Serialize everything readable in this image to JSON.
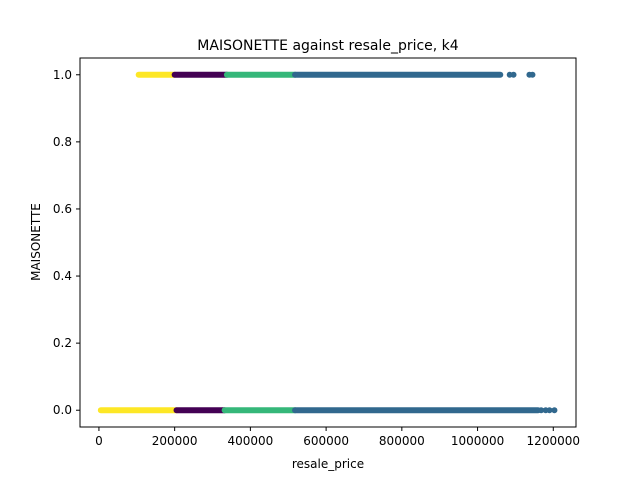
{
  "chart_data": {
    "type": "scatter",
    "title": "MAISONETTE against resale_price, k4",
    "xlabel": "resale_price",
    "ylabel": "MAISONETTE",
    "xlim": [
      -50000,
      1260000
    ],
    "ylim": [
      -0.05,
      1.05
    ],
    "xticks": [
      0,
      200000,
      400000,
      600000,
      800000,
      1000000,
      1200000
    ],
    "xtick_labels": [
      "0",
      "200000",
      "400000",
      "600000",
      "800000",
      "1000000",
      "1200000"
    ],
    "yticks": [
      0.0,
      0.2,
      0.4,
      0.6,
      0.8,
      1.0
    ],
    "ytick_labels": [
      "0.0",
      "0.2",
      "0.4",
      "0.6",
      "0.8",
      "1.0"
    ],
    "grid": false,
    "legend": "none",
    "clusters": [
      {
        "color": "#fde725",
        "segments": [
          {
            "y": 0,
            "x_start": 5000,
            "x_end": 205000
          },
          {
            "y": 1,
            "x_start": 105000,
            "x_end": 200000
          }
        ]
      },
      {
        "color": "#440154",
        "segments": [
          {
            "y": 0,
            "x_start": 205000,
            "x_end": 332000
          },
          {
            "y": 1,
            "x_start": 200000,
            "x_end": 338000
          }
        ]
      },
      {
        "color": "#35b779",
        "segments": [
          {
            "y": 0,
            "x_start": 332000,
            "x_end": 518000
          },
          {
            "y": 1,
            "x_start": 338000,
            "x_end": 518000
          }
        ]
      },
      {
        "color": "#31688e",
        "segments": [
          {
            "y": 0,
            "x_start": 518000,
            "x_end": 1160000
          },
          {
            "y": 1,
            "x_start": 518000,
            "x_end": 1060000
          }
        ]
      }
    ],
    "outliers": [
      {
        "x": 1085000,
        "y": 1,
        "color": "#31688e"
      },
      {
        "x": 1095000,
        "y": 1,
        "color": "#31688e"
      },
      {
        "x": 1137000,
        "y": 1,
        "color": "#31688e"
      },
      {
        "x": 1145000,
        "y": 1,
        "color": "#31688e"
      },
      {
        "x": 1168000,
        "y": 0,
        "color": "#31688e"
      },
      {
        "x": 1180000,
        "y": 0,
        "color": "#31688e"
      },
      {
        "x": 1190000,
        "y": 0,
        "color": "#31688e"
      },
      {
        "x": 1203000,
        "y": 0,
        "color": "#31688e"
      }
    ]
  }
}
